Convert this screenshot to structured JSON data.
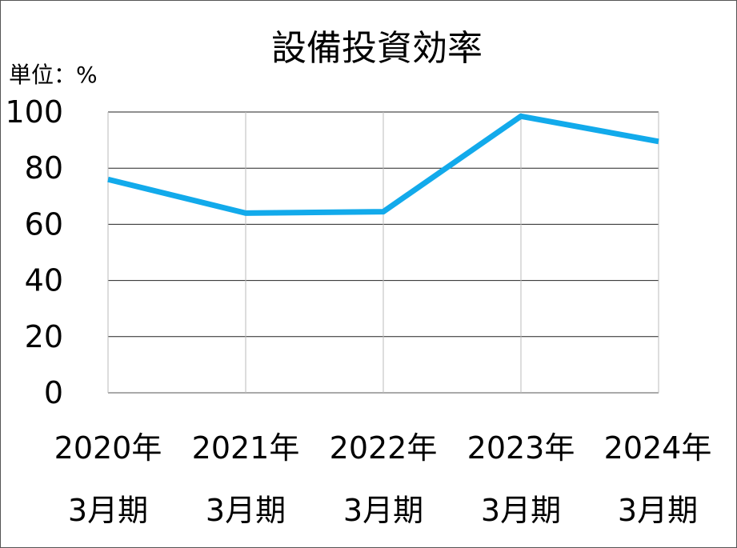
{
  "chart_data": {
    "type": "line",
    "title": "設備投資効率",
    "unit_label": "単位：%",
    "categories": [
      [
        "2020年",
        "3月期"
      ],
      [
        "2021年",
        "3月期"
      ],
      [
        "2022年",
        "3月期"
      ],
      [
        "2023年",
        "3月期"
      ],
      [
        "2024年",
        "3月期"
      ]
    ],
    "series": [
      {
        "values": [
          76,
          64,
          64.5,
          98.5,
          89.5
        ],
        "color": "#12aaeb"
      }
    ],
    "ylim": [
      0,
      100
    ],
    "yticks": [
      "0",
      "20",
      "40",
      "60",
      "80",
      "100"
    ],
    "grid": true,
    "legend": "none"
  }
}
